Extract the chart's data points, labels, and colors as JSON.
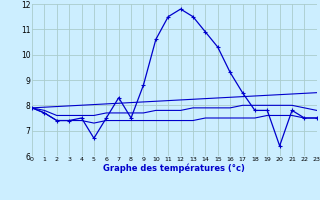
{
  "title": "Graphe des températures (°c)",
  "background_color": "#cceeff",
  "grid_color": "#aacccc",
  "line_color": "#0000cc",
  "ylim": [
    6,
    12
  ],
  "xlim": [
    0,
    23
  ],
  "yticks": [
    6,
    7,
    8,
    9,
    10,
    11,
    12
  ],
  "xticks": [
    0,
    1,
    2,
    3,
    4,
    5,
    6,
    7,
    8,
    9,
    10,
    11,
    12,
    13,
    14,
    15,
    16,
    17,
    18,
    19,
    20,
    21,
    22,
    23
  ],
  "series": [
    {
      "x": [
        0,
        1,
        2,
        3,
        4,
        5,
        6,
        7,
        8,
        9,
        10,
        11,
        12,
        13,
        14,
        15,
        16,
        17,
        18,
        19,
        20,
        21,
        22,
        23
      ],
      "y": [
        7.9,
        7.7,
        7.4,
        7.4,
        7.5,
        6.7,
        7.5,
        8.3,
        7.5,
        8.8,
        10.6,
        11.5,
        11.8,
        11.5,
        10.9,
        10.3,
        9.3,
        8.5,
        7.8,
        7.8,
        6.4,
        7.8,
        7.5,
        7.5
      ],
      "marker": true
    },
    {
      "x": [
        0,
        1,
        2,
        3,
        4,
        5,
        6,
        7,
        8,
        9,
        10,
        11,
        12,
        13,
        14,
        15,
        16,
        17,
        18,
        19,
        20,
        21,
        22,
        23
      ],
      "y": [
        7.9,
        7.7,
        7.4,
        7.4,
        7.4,
        7.3,
        7.4,
        7.4,
        7.4,
        7.4,
        7.4,
        7.4,
        7.4,
        7.4,
        7.5,
        7.5,
        7.5,
        7.5,
        7.5,
        7.6,
        7.6,
        7.6,
        7.5,
        7.5
      ],
      "marker": false
    },
    {
      "x": [
        0,
        1,
        2,
        3,
        4,
        5,
        6,
        7,
        8,
        9,
        10,
        11,
        12,
        13,
        14,
        15,
        16,
        17,
        18,
        19,
        20,
        21,
        22,
        23
      ],
      "y": [
        7.9,
        7.8,
        7.6,
        7.6,
        7.6,
        7.6,
        7.7,
        7.7,
        7.7,
        7.7,
        7.8,
        7.8,
        7.8,
        7.9,
        7.9,
        7.9,
        7.9,
        8.0,
        8.0,
        8.0,
        8.0,
        8.0,
        7.9,
        7.8
      ],
      "marker": false
    },
    {
      "x": [
        0,
        23
      ],
      "y": [
        7.9,
        8.5
      ],
      "marker": false
    }
  ]
}
